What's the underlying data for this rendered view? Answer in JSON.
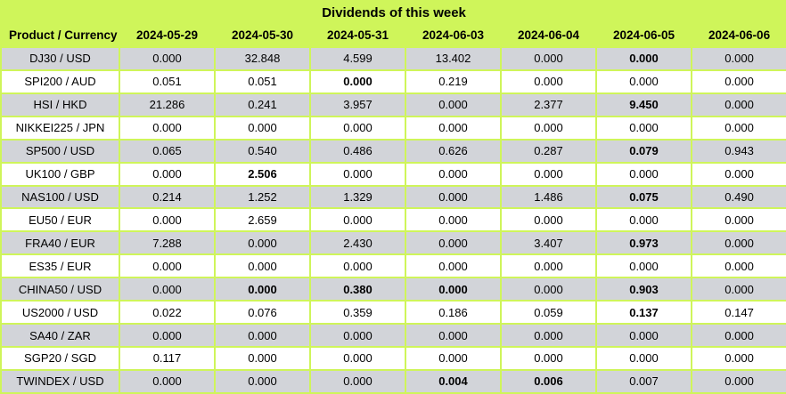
{
  "title": "Dividends of this week",
  "colors": {
    "grid_green": "#cff55a",
    "row_alt_grey": "#d2d4d9",
    "row_white": "#ffffff",
    "text": "#000000"
  },
  "table": {
    "product_header": "Product / Currency",
    "date_headers": [
      "2024-05-29",
      "2024-05-30",
      "2024-05-31",
      "2024-06-03",
      "2024-06-04",
      "2024-06-05",
      "2024-06-06"
    ],
    "rows": [
      {
        "product": "DJ30 / USD",
        "values": [
          "0.000",
          "32.848",
          "4.599",
          "13.402",
          "0.000",
          "0.000",
          "0.000"
        ],
        "bold_cols": [
          5
        ]
      },
      {
        "product": "SPI200 / AUD",
        "values": [
          "0.051",
          "0.051",
          "0.000",
          "0.219",
          "0.000",
          "0.000",
          "0.000"
        ],
        "bold_cols": [
          2
        ]
      },
      {
        "product": "HSI / HKD",
        "values": [
          "21.286",
          "0.241",
          "3.957",
          "0.000",
          "2.377",
          "9.450",
          "0.000"
        ],
        "bold_cols": [
          5
        ]
      },
      {
        "product": "NIKKEI225 / JPN",
        "values": [
          "0.000",
          "0.000",
          "0.000",
          "0.000",
          "0.000",
          "0.000",
          "0.000"
        ],
        "bold_cols": []
      },
      {
        "product": "SP500 / USD",
        "values": [
          "0.065",
          "0.540",
          "0.486",
          "0.626",
          "0.287",
          "0.079",
          "0.943"
        ],
        "bold_cols": [
          5
        ]
      },
      {
        "product": "UK100 / GBP",
        "values": [
          "0.000",
          "2.506",
          "0.000",
          "0.000",
          "0.000",
          "0.000",
          "0.000"
        ],
        "bold_cols": [
          1
        ]
      },
      {
        "product": "NAS100 / USD",
        "values": [
          "0.214",
          "1.252",
          "1.329",
          "0.000",
          "1.486",
          "0.075",
          "0.490"
        ],
        "bold_cols": [
          5
        ]
      },
      {
        "product": "EU50 / EUR",
        "values": [
          "0.000",
          "2.659",
          "0.000",
          "0.000",
          "0.000",
          "0.000",
          "0.000"
        ],
        "bold_cols": []
      },
      {
        "product": "FRA40 / EUR",
        "values": [
          "7.288",
          "0.000",
          "2.430",
          "0.000",
          "3.407",
          "0.973",
          "0.000"
        ],
        "bold_cols": [
          5
        ]
      },
      {
        "product": "ES35 / EUR",
        "values": [
          "0.000",
          "0.000",
          "0.000",
          "0.000",
          "0.000",
          "0.000",
          "0.000"
        ],
        "bold_cols": []
      },
      {
        "product": "CHINA50 / USD",
        "values": [
          "0.000",
          "0.000",
          "0.380",
          "0.000",
          "0.000",
          "0.903",
          "0.000"
        ],
        "bold_cols": [
          1,
          2,
          3,
          5
        ]
      },
      {
        "product": "US2000 / USD",
        "values": [
          "0.022",
          "0.076",
          "0.359",
          "0.186",
          "0.059",
          "0.137",
          "0.147"
        ],
        "bold_cols": [
          5
        ]
      },
      {
        "product": "SA40 / ZAR",
        "values": [
          "0.000",
          "0.000",
          "0.000",
          "0.000",
          "0.000",
          "0.000",
          "0.000"
        ],
        "bold_cols": []
      },
      {
        "product": "SGP20 / SGD",
        "values": [
          "0.117",
          "0.000",
          "0.000",
          "0.000",
          "0.000",
          "0.000",
          "0.000"
        ],
        "bold_cols": []
      },
      {
        "product": "TWINDEX / USD",
        "values": [
          "0.000",
          "0.000",
          "0.000",
          "0.004",
          "0.006",
          "0.007",
          "0.000"
        ],
        "bold_cols": [
          3,
          4
        ]
      }
    ]
  }
}
